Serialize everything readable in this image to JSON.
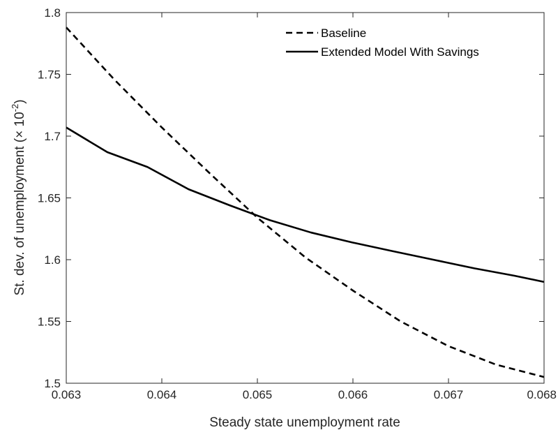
{
  "chart_data": {
    "type": "line",
    "title": "",
    "xlabel": "Steady state unemployment rate",
    "ylabel": {
      "prefix": "St. dev. of unemployment (",
      "times": "×",
      "base": " 10",
      "exponent": "-2",
      "suffix": ")"
    },
    "xlim": [
      0.063,
      0.068
    ],
    "ylim": [
      1.5,
      1.8
    ],
    "xticks": [
      "0.063",
      "0.064",
      "0.065",
      "0.066",
      "0.067",
      "0.068"
    ],
    "yticks": [
      "1.5",
      "1.55",
      "1.6",
      "1.65",
      "1.7",
      "1.75",
      "1.8"
    ],
    "grid": false,
    "legend_position": "top-right",
    "series": [
      {
        "name": "Baseline",
        "style": "dashed",
        "color": "#000000",
        "x": [
          0.063,
          0.0635,
          0.064,
          0.0645,
          0.065,
          0.0655,
          0.066,
          0.0665,
          0.067,
          0.0675,
          0.068
        ],
        "y": [
          1.788,
          1.746,
          1.707,
          1.67,
          1.634,
          1.602,
          1.575,
          1.55,
          1.53,
          1.515,
          1.505
        ]
      },
      {
        "name": "Extended Model With Savings",
        "style": "solid",
        "color": "#000000",
        "x": [
          0.063,
          0.06343,
          0.06385,
          0.06428,
          0.06471,
          0.06513,
          0.06556,
          0.06599,
          0.06641,
          0.06684,
          0.06727,
          0.06769,
          0.068
        ],
        "y": [
          1.707,
          1.687,
          1.675,
          1.657,
          1.644,
          1.632,
          1.622,
          1.614,
          1.607,
          1.6,
          1.593,
          1.587,
          1.582
        ]
      }
    ]
  }
}
